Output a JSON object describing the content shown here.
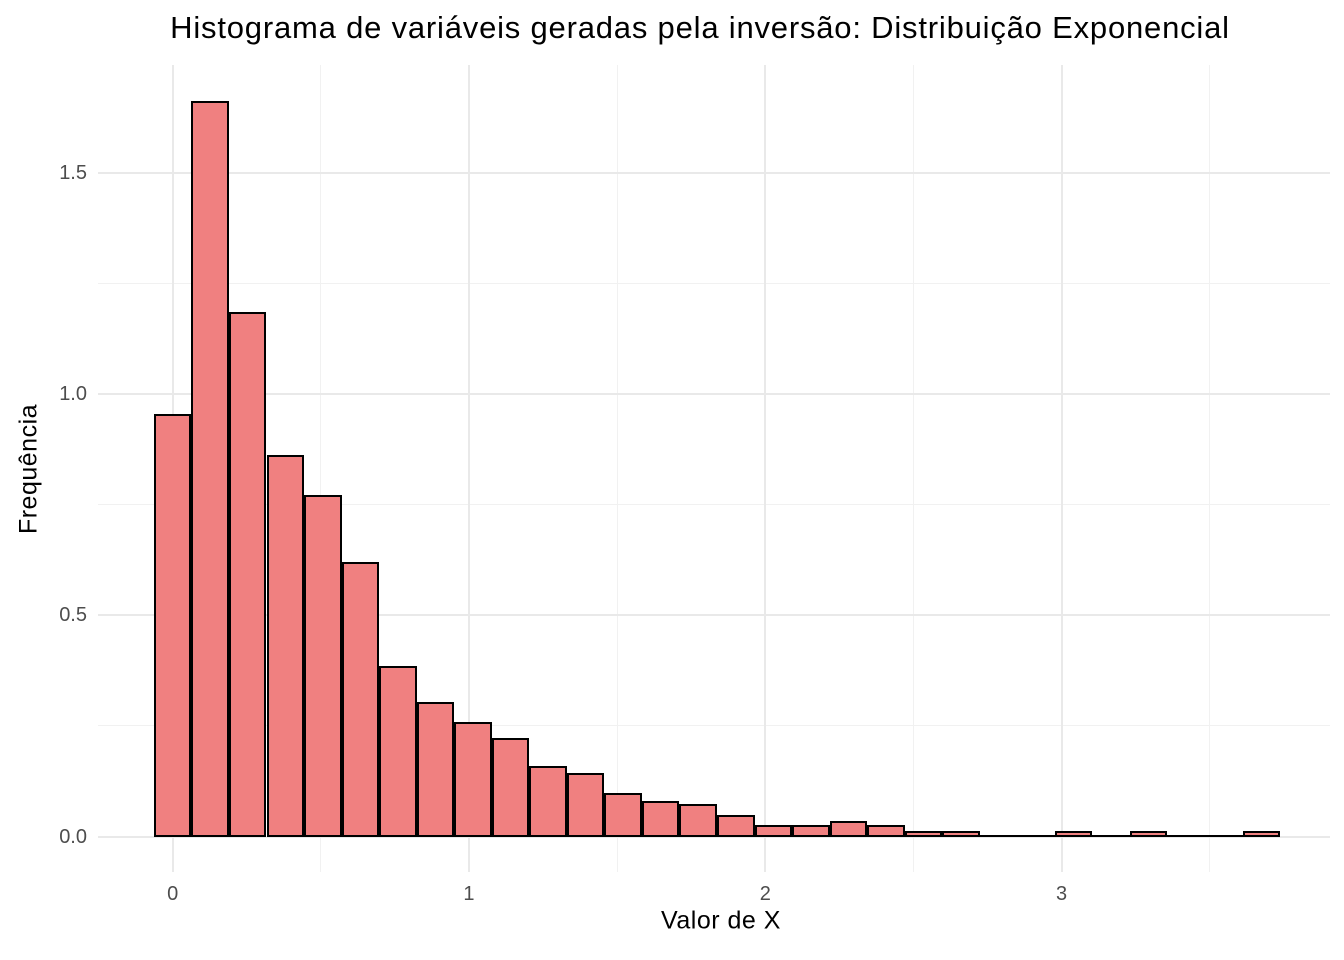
{
  "chart_data": {
    "type": "bar",
    "chart_kind": "histogram",
    "title": "Histograma de variáveis geradas pela inversão: Distribuição Exponencial",
    "xlabel": "Valor de X",
    "ylabel": "Frequência",
    "legend": "none",
    "grid": true,
    "xlim": [
      -0.252,
      3.906
    ],
    "ylim": [
      -0.08,
      1.743
    ],
    "x_ticks": {
      "values": [
        0,
        1,
        2,
        3
      ],
      "labels": [
        "0",
        "1",
        "2",
        "3"
      ]
    },
    "y_ticks": {
      "values": [
        0,
        0.5,
        1.0,
        1.5
      ],
      "labels": [
        "0.0",
        "0.5",
        "1.0",
        "1.5"
      ]
    },
    "x_minor_breaks": [
      0.5,
      1.5,
      2.5,
      3.5
    ],
    "y_minor_breaks": [
      0.25,
      0.75,
      1.25
    ],
    "bins": {
      "start": -0.0634,
      "binwidth": 0.1267,
      "densities": [
        0.955,
        1.662,
        1.186,
        0.861,
        0.771,
        0.62,
        0.386,
        0.303,
        0.259,
        0.222,
        0.159,
        0.143,
        0.098,
        0.081,
        0.073,
        0.048,
        0.027,
        0.027,
        0.036,
        0.026,
        0.013,
        0.013,
        0,
        0,
        0.013,
        0,
        0.013,
        0,
        0,
        0.013
      ]
    },
    "colors": {
      "bar_fill": "#F08080",
      "bar_stroke": "#000000",
      "grid_major": "#E9E9E9",
      "grid_minor": "#F1F1F1",
      "tick_label": "#4D4D4D",
      "title_text": "#000000",
      "background": "#FFFFFF"
    }
  }
}
